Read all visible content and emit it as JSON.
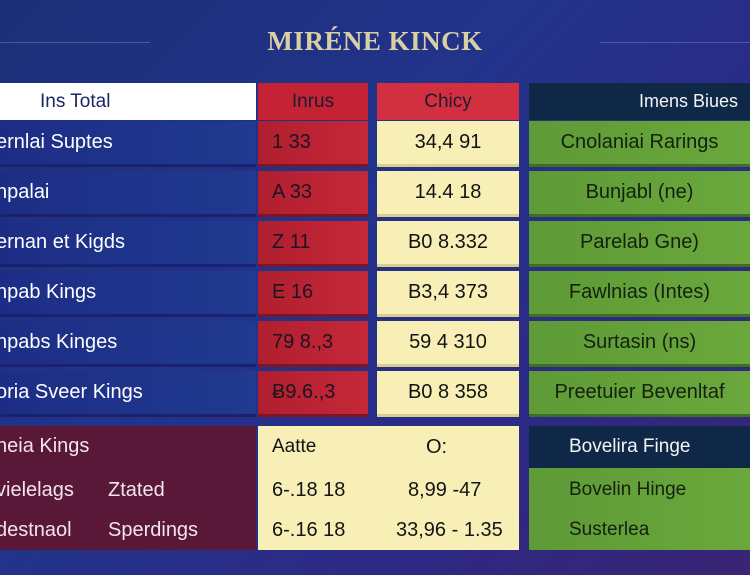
{
  "title": "MIRÉNE KINCK",
  "headers": {
    "team": "Ins Total",
    "inns": "Inrus",
    "chcy": "Chicy",
    "last": "Imens Biues"
  },
  "rows": [
    {
      "team": "ernlai Suptes",
      "inns": "1  33",
      "chcy": "34,4  91",
      "last": "Cnolaniai Rarings"
    },
    {
      "team": "npalai",
      "inns": "A  33",
      "chcy": "14.4  18",
      "last": "Bunjabl (ne)"
    },
    {
      "team": "ernan et Kigds",
      "inns": "Z  11",
      "chcy": "B0  8.332",
      "last": "Parelab Gne)"
    },
    {
      "team": "npab Kings",
      "inns": "E  16",
      "chcy": "B3,4  373",
      "last": "Fawlnias (Intes)"
    },
    {
      "team": "npabs Kinges",
      "inns": "79 8.,3",
      "chcy": "59  4  310",
      "last": "Surtasin  (ns)"
    },
    {
      "team": "oria Sveer Kings",
      "inns": "Ƀ9.6.,3",
      "chcy": "B0  8  358",
      "last": "Preetuier Bevenltaf"
    }
  ],
  "lower": {
    "row1": {
      "team": "neia Kings",
      "mid_a": "Aatte",
      "mid_b": "O:",
      "right": "Bovelira Finge"
    },
    "row2": {
      "team_a": "vielelags",
      "team_b": "Ztated",
      "mid_a": "6-.18 18",
      "mid_b": "8,99  -47",
      "right": "Bovelin Hinge"
    },
    "row3": {
      "team_a": "destnaol",
      "team_b": "Sperdings",
      "mid_a": "6-.16 18",
      "mid_b": "33,96  - 1.35",
      "right": "Susterlea"
    }
  }
}
